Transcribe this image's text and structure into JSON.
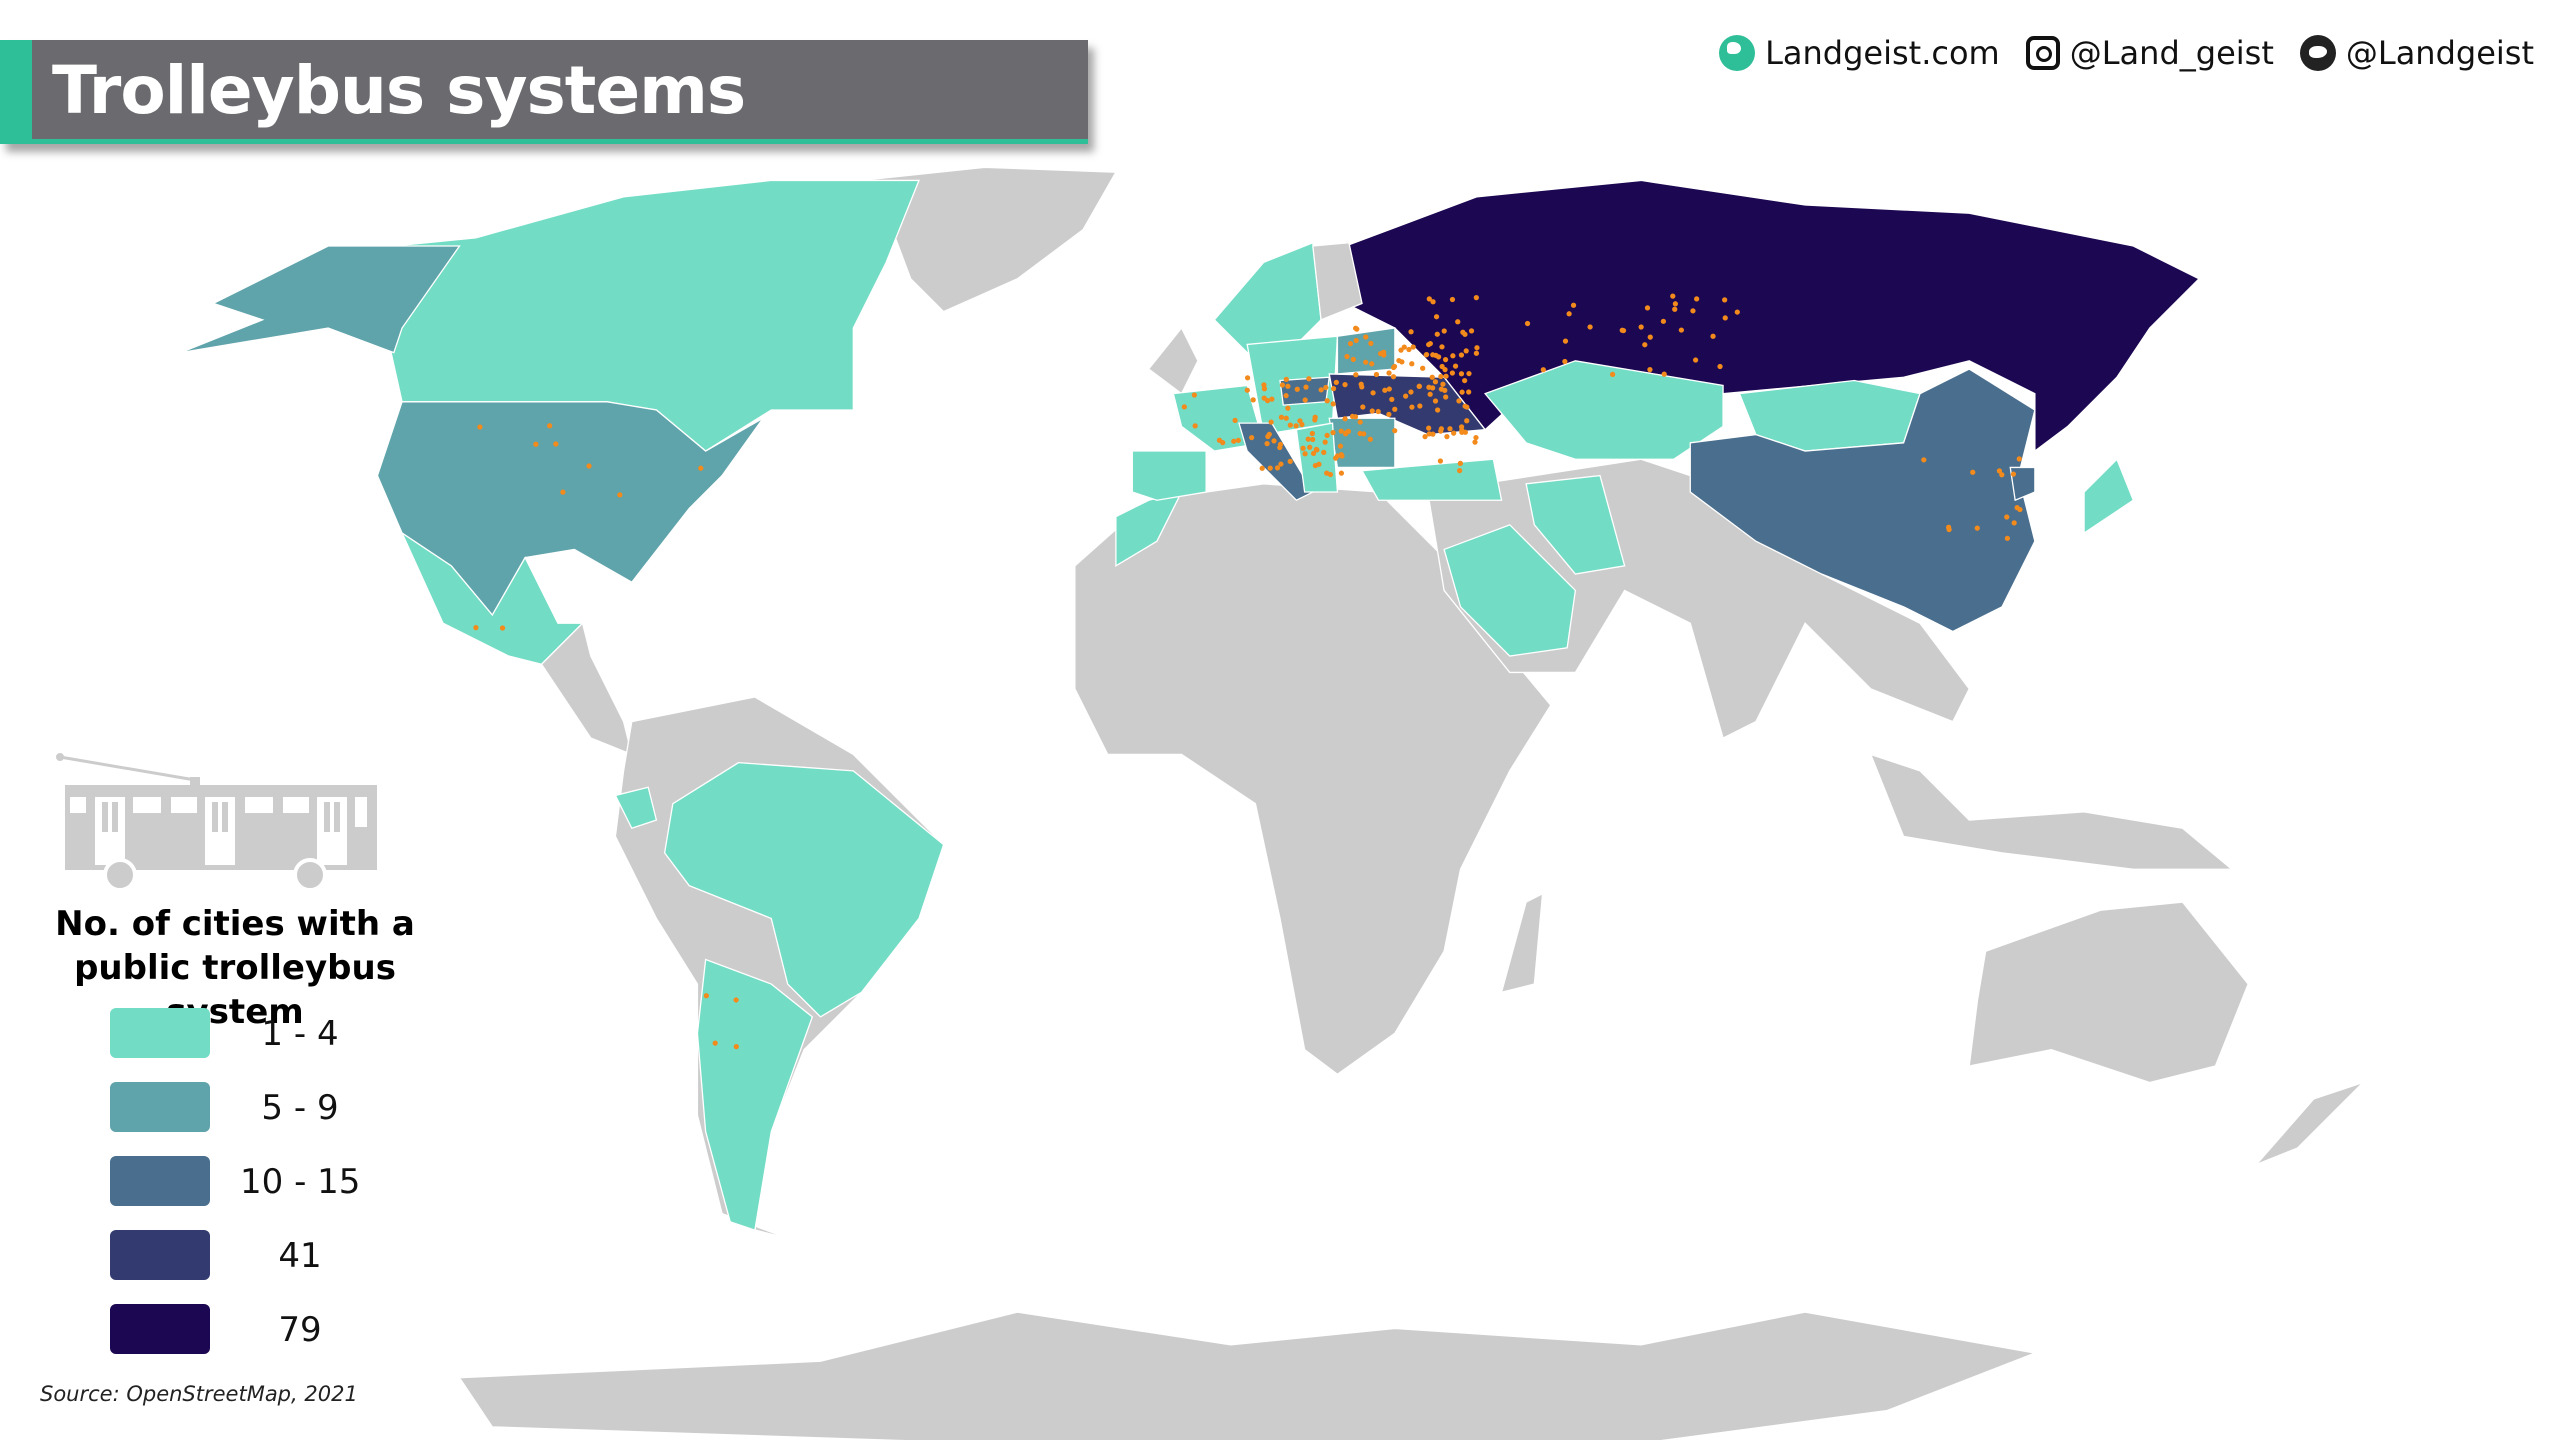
{
  "title": "Trolleybus systems",
  "credits": {
    "website": "Landgeist.com",
    "instagram": "@Land_geist",
    "twitter": "@Landgeist"
  },
  "legend": {
    "title": "No. of cities with a public trolleybus system",
    "items": [
      {
        "label": "1 - 4",
        "color": "#72dcc5"
      },
      {
        "label": "5 - 9",
        "color": "#5fa3ab"
      },
      {
        "label": "10 - 15",
        "color": "#4a6e8e"
      },
      {
        "label": "41",
        "color": "#333a70"
      },
      {
        "label": "79",
        "color": "#1c0752"
      }
    ]
  },
  "colors": {
    "no_data": "#cccccc",
    "city_dot": "#f28a1c",
    "accent": "#2fbf98",
    "title_bar": "#6b6b6f"
  },
  "source": "Source: OpenStreetMap, 2021"
}
